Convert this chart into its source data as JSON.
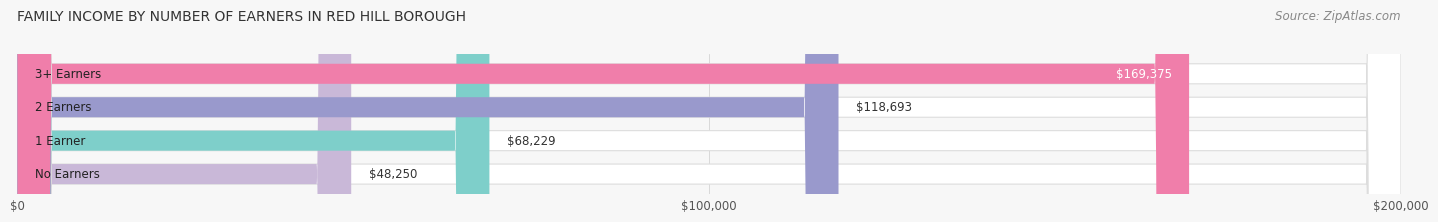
{
  "title": "FAMILY INCOME BY NUMBER OF EARNERS IN RED HILL BOROUGH",
  "source": "Source: ZipAtlas.com",
  "categories": [
    "No Earners",
    "1 Earner",
    "2 Earners",
    "3+ Earners"
  ],
  "values": [
    48250,
    68229,
    118693,
    169375
  ],
  "bar_colors": [
    "#c9b8d8",
    "#7ecfca",
    "#9999cc",
    "#f07eaa"
  ],
  "value_labels": [
    "$48,250",
    "$68,229",
    "$118,693",
    "$169,375"
  ],
  "xlim": [
    0,
    200000
  ],
  "xtick_labels": [
    "$0",
    "$100,000",
    "$200,000"
  ],
  "xtick_values": [
    0,
    100000,
    200000
  ],
  "title_fontsize": 10,
  "source_fontsize": 8.5,
  "label_fontsize": 8.5,
  "value_fontsize": 8.5,
  "background_color": "#f7f7f7",
  "bar_height": 0.6,
  "fig_width": 14.06,
  "fig_height": 2.34
}
